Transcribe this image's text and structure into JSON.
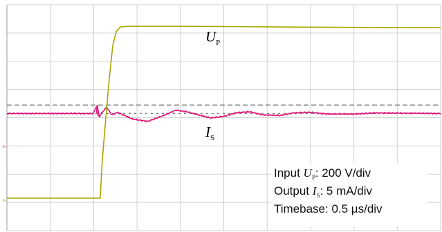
{
  "chart_data": {
    "type": "line",
    "grid": true,
    "x_divisions": 10,
    "y_divisions": 8,
    "background": "#ffffff",
    "grid_color": "#cfcfcf",
    "dashed_level_color": "#7a7a7a",
    "series": [
      {
        "name_symbol": "U",
        "name_sub": "P",
        "color": "#a7a600",
        "points_div": [
          [
            0,
            6.85
          ],
          [
            2.15,
            6.85
          ],
          [
            2.2,
            5.5
          ],
          [
            2.28,
            4.0
          ],
          [
            2.36,
            2.6
          ],
          [
            2.44,
            1.45
          ],
          [
            2.52,
            0.95
          ],
          [
            2.62,
            0.78
          ],
          [
            2.8,
            0.76
          ],
          [
            4,
            0.76
          ],
          [
            6,
            0.78
          ],
          [
            8,
            0.8
          ],
          [
            10,
            0.81
          ]
        ]
      },
      {
        "name_symbol": "I",
        "name_sub": "S",
        "color": "#e0157a",
        "baseline_div": 3.85,
        "ringing_start_div": 2.0,
        "ringing": [
          [
            2.0,
            -0.04
          ],
          [
            2.08,
            -0.3
          ],
          [
            2.13,
            0.12
          ],
          [
            2.2,
            -0.05
          ],
          [
            2.3,
            -0.22
          ],
          [
            2.42,
            0.05
          ],
          [
            2.55,
            -0.04
          ],
          [
            2.7,
            0.06
          ],
          [
            2.9,
            0.2
          ],
          [
            3.25,
            0.28
          ],
          [
            3.6,
            0.08
          ],
          [
            3.9,
            -0.12
          ],
          [
            4.15,
            -0.06
          ],
          [
            4.4,
            0.04
          ],
          [
            4.7,
            0.16
          ],
          [
            5.0,
            0.1
          ],
          [
            5.3,
            -0.03
          ],
          [
            5.6,
            -0.06
          ],
          [
            5.9,
            0.05
          ],
          [
            6.3,
            0.07
          ],
          [
            6.6,
            -0.02
          ],
          [
            7.0,
            -0.04
          ],
          [
            7.4,
            0.02
          ],
          [
            8,
            0.02
          ],
          [
            8.5,
            -0.02
          ],
          [
            10,
            0
          ]
        ]
      }
    ],
    "reference_levels_div": [
      3.55,
      3.85
    ],
    "labels": {
      "up_symbol": "U",
      "up_sub": "P",
      "is_symbol": "I",
      "is_sub": "S"
    },
    "annotation": {
      "line1_prefix": "Input ",
      "line1_symbol": "U",
      "line1_sub": "P",
      "line1_suffix": ": 200 V/div",
      "line2_prefix": "Output ",
      "line2_symbol": "I",
      "line2_sub": "S",
      "line2_suffix": ": 5 mA/div",
      "line3": "Timebase: 0.5 µs/div"
    }
  }
}
